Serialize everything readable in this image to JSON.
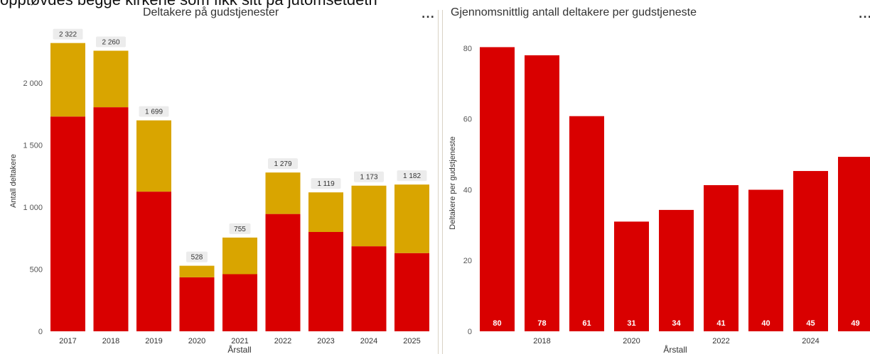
{
  "page": {
    "top_text": "opptøvdes begge kirkene som fikk sitt på jutomsetdetn"
  },
  "colors": {
    "red": "#d90000",
    "gold": "#d9a500"
  },
  "left_chart": {
    "title": "Deltakere på gudstjenester",
    "more_label": "..."
  },
  "right_chart": {
    "title": "Gjennomsnittlig antall deltakere per gudstjeneste",
    "more_label": "..."
  },
  "chart_data": [
    {
      "type": "bar",
      "stacked": true,
      "title": "Deltakere på gudstjenester",
      "xlabel": "Årstall",
      "ylabel": "Antall deltakere",
      "categories": [
        "2017",
        "2018",
        "2019",
        "2020",
        "2021",
        "2022",
        "2023",
        "2024",
        "2025"
      ],
      "series": [
        {
          "color": "#d90000",
          "values": [
            1730,
            1805,
            1125,
            435,
            460,
            945,
            800,
            685,
            630
          ]
        },
        {
          "color": "#d9a500",
          "values": [
            592,
            455,
            574,
            93,
            295,
            334,
            319,
            488,
            552
          ]
        }
      ],
      "totals": [
        2322,
        2260,
        1699,
        528,
        755,
        1279,
        1119,
        1173,
        1182
      ],
      "total_labels": [
        "2 322",
        "2 260",
        "1 699",
        "528",
        "755",
        "1 279",
        "1 119",
        "1 173",
        "1 182"
      ],
      "ylim": [
        0,
        2440
      ],
      "yticks": [
        0,
        500,
        1000,
        1500,
        2000
      ],
      "ytick_labels": [
        "0",
        "500",
        "1 000",
        "1 500",
        "2 000"
      ],
      "grid": false
    },
    {
      "type": "bar",
      "title": "Gjennomsnittlig antall deltakere per gudstjeneste",
      "xlabel": "Årstall",
      "ylabel": "Deltakere per gudstjeneste",
      "x": [
        2017,
        2018,
        2019,
        2020,
        2021,
        2022,
        2023,
        2024,
        2025
      ],
      "values": [
        80.3,
        78,
        60.8,
        31,
        34.3,
        41.3,
        40,
        45.3,
        49.3
      ],
      "value_labels": [
        "80",
        "78",
        "61",
        "31",
        "34",
        "41",
        "40",
        "45",
        "49"
      ],
      "xticks": [
        2018,
        2020,
        2022,
        2024
      ],
      "xtick_labels": [
        "2018",
        "2020",
        "2022",
        "2024"
      ],
      "ylim": [
        0,
        84
      ],
      "yticks": [
        0,
        20,
        40,
        60,
        80
      ],
      "ytick_labels": [
        "0",
        "20",
        "40",
        "60",
        "80"
      ],
      "color": "#d90000",
      "grid": false
    }
  ]
}
